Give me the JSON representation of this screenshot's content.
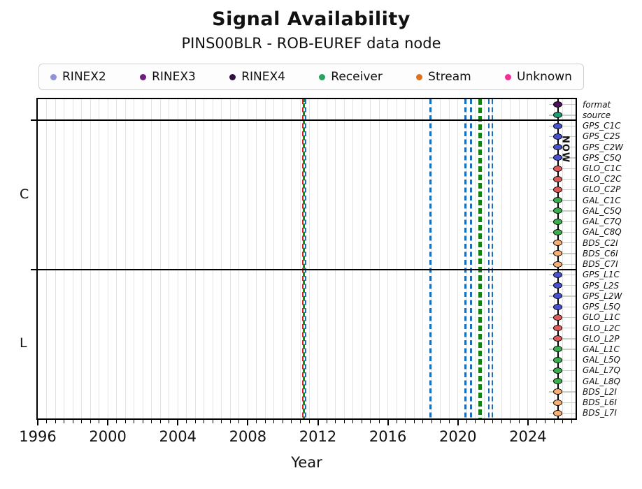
{
  "page": {
    "background": "#ffffff"
  },
  "chart_data": {
    "type": "timeline",
    "title": "Signal Availability",
    "subtitle": "PINS00BLR - ROB-EUREF data node",
    "xlabel": "Year",
    "xlim": [
      1996,
      2026.72
    ],
    "x_major_ticks": [
      1996,
      2000,
      2004,
      2008,
      2012,
      2016,
      2020,
      2024
    ],
    "x_minor_step": 0.5,
    "grid": true,
    "legend": {
      "position": "top",
      "items": [
        {
          "label": "RINEX2",
          "color": "#9191d9"
        },
        {
          "label": "RINEX3",
          "color": "#6f1d7c"
        },
        {
          "label": "RINEX4",
          "color": "#331040"
        },
        {
          "label": "Receiver",
          "color": "#29a35e"
        },
        {
          "label": "Stream",
          "color": "#e2711d"
        },
        {
          "label": "Unknown",
          "color": "#ef2f96"
        }
      ]
    },
    "marker_colors": {
      "format": "#4d0f5c",
      "source": "#1b9e77",
      "GPS": "#4852d0",
      "GLO": "#e05a5a",
      "GAL": "#3ab04e",
      "BDS": "#fbaf70"
    },
    "sections": [
      {
        "name": "",
        "rows": [
          "format",
          "source"
        ]
      },
      {
        "name": "C",
        "rows": [
          "GPS_C1C",
          "GPS_C2S",
          "GPS_C2W",
          "GPS_C5Q",
          "GLO_C1C",
          "GLO_C2C",
          "GLO_C2P",
          "GAL_C1C",
          "GAL_C5Q",
          "GAL_C7Q",
          "GAL_C8Q",
          "BDS_C2I",
          "BDS_C6I",
          "BDS_C7I"
        ]
      },
      {
        "name": "L",
        "rows": [
          "GPS_L1C",
          "GPS_L2S",
          "GPS_L2W",
          "GPS_L5Q",
          "GLO_L1C",
          "GLO_L2C",
          "GLO_L2P",
          "GAL_L1C",
          "GAL_L5Q",
          "GAL_L7Q",
          "GAL_L8Q",
          "BDS_L2I",
          "BDS_L6I",
          "BDS_L7I"
        ]
      }
    ],
    "events": [
      {
        "year": 2011.15,
        "color": "#cf2727",
        "width": 2.5,
        "dash": [
          7,
          4.5
        ],
        "phase": 0
      },
      {
        "year": 2011.21,
        "color": "#168a16",
        "width": 2.5,
        "dash": [
          7,
          4.5
        ],
        "phase": 5.75
      },
      {
        "year": 2011.3,
        "color": "#1b6fba",
        "width": 2.5,
        "dash": [
          7,
          4.5
        ],
        "phase": 0
      },
      {
        "year": 2018.44,
        "color": "#1b6fba",
        "width": 2.5,
        "dash": [
          7,
          4.5
        ],
        "phase": 0
      },
      {
        "year": 2020.42,
        "color": "#1b6fba",
        "width": 2.5,
        "dash": [
          7,
          4.5
        ],
        "phase": 0
      },
      {
        "year": 2020.74,
        "color": "#1b6fba",
        "width": 2.5,
        "dash": [
          7,
          4.5
        ],
        "phase": 0
      },
      {
        "year": 2021.26,
        "color": "#128212",
        "width": 5.5,
        "dash": [
          8,
          4
        ],
        "phase": 0
      },
      {
        "year": 2021.76,
        "color": "#1b6fba",
        "width": 2.5,
        "dash": [
          7,
          4.5
        ],
        "phase": 0
      },
      {
        "year": 2021.97,
        "color": "#1b6fba",
        "width": 2.5,
        "dash": [
          7,
          4.5
        ],
        "phase": 0
      }
    ],
    "now": {
      "year": 2025.71,
      "label": "NOW",
      "line_color": "#000000"
    },
    "colors": {
      "grid": "#e3e3e3",
      "leader": "#c6d0c2",
      "axis": "#000000"
    }
  }
}
